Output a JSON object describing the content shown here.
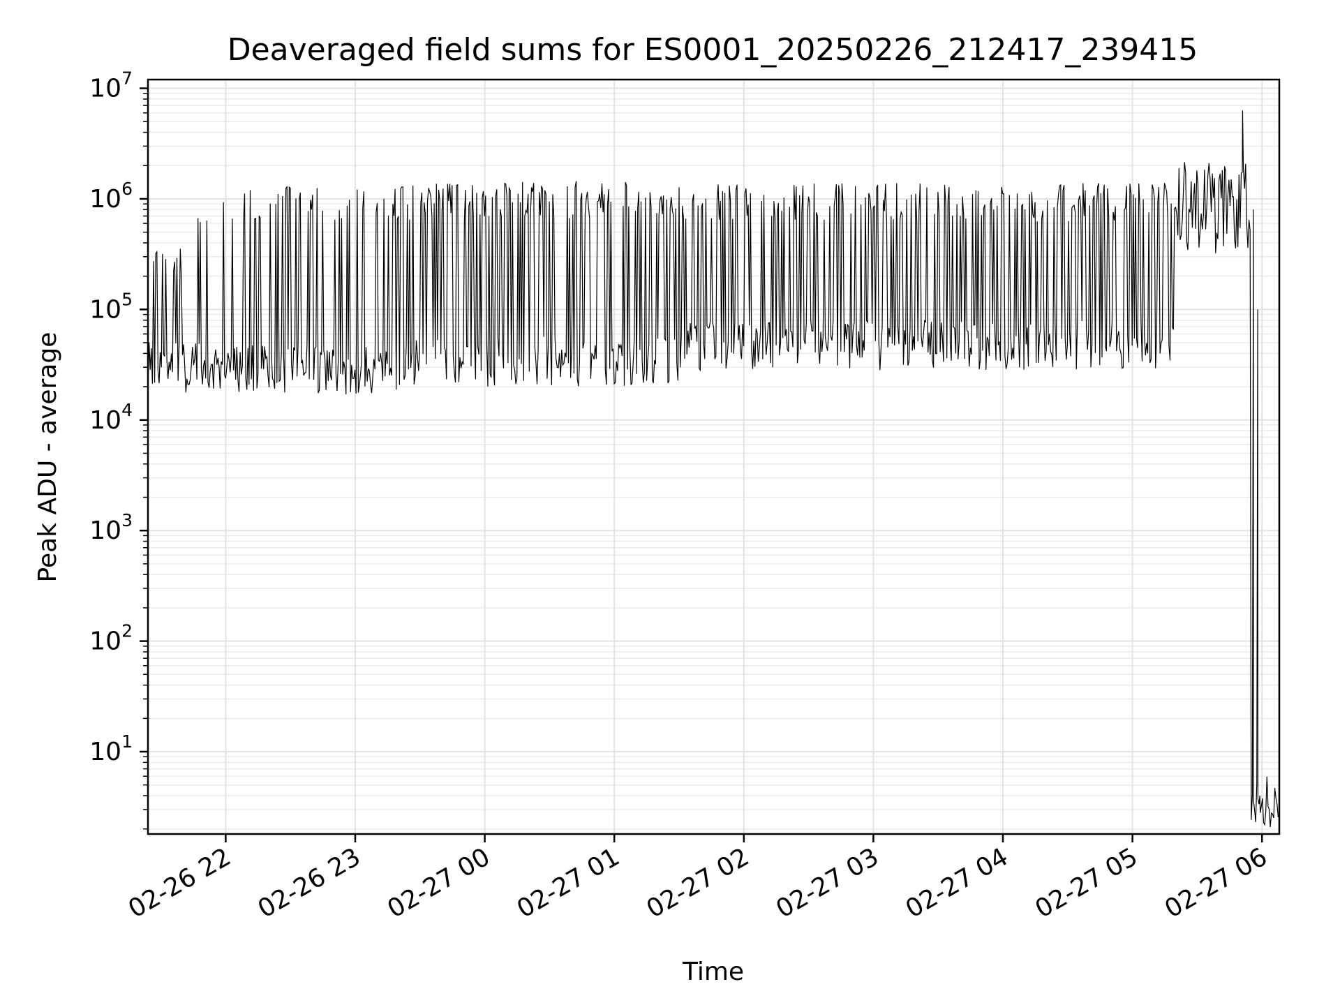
{
  "chart_data": {
    "type": "line",
    "title": "Deaveraged field sums for ES0001_20250226_212417_239415",
    "xlabel": "Time",
    "ylabel": "Peak ADU - average",
    "yscale": "log",
    "ylim": [
      1.8,
      12000000
    ],
    "xlim": [
      "02-26 21:24",
      "02-27 06:08"
    ],
    "grid": true,
    "x_ticks": [
      {
        "label": "02-26 22",
        "time": "02-26 22:00"
      },
      {
        "label": "02-26 23",
        "time": "02-26 23:00"
      },
      {
        "label": "02-27 00",
        "time": "02-27 00:00"
      },
      {
        "label": "02-27 01",
        "time": "02-27 01:00"
      },
      {
        "label": "02-27 02",
        "time": "02-27 02:00"
      },
      {
        "label": "02-27 03",
        "time": "02-27 03:00"
      },
      {
        "label": "02-27 04",
        "time": "02-27 04:00"
      },
      {
        "label": "02-27 05",
        "time": "02-27 05:00"
      },
      {
        "label": "02-27 06",
        "time": "02-27 06:00"
      }
    ],
    "y_ticks": [
      {
        "base": "10",
        "exp": "1",
        "value": 10
      },
      {
        "base": "10",
        "exp": "2",
        "value": 100
      },
      {
        "base": "10",
        "exp": "3",
        "value": 1000
      },
      {
        "base": "10",
        "exp": "4",
        "value": 10000
      },
      {
        "base": "10",
        "exp": "5",
        "value": 100000
      },
      {
        "base": "10",
        "exp": "6",
        "value": 1000000
      },
      {
        "base": "10",
        "exp": "7",
        "value": 10000000
      }
    ],
    "series": [
      {
        "color": "#000000",
        "segments": [
          {
            "start": "02-26 21:24",
            "end": "02-26 21:40",
            "baseline": 30000,
            "peak": 400000,
            "spike_freq": 0.4
          },
          {
            "start": "02-26 21:40",
            "end": "02-26 22:00",
            "baseline": 28000,
            "peak": 1300000,
            "spike_freq": 0.2
          },
          {
            "start": "02-26 22:00",
            "end": "02-26 23:20",
            "baseline": 27000,
            "peak": 1350000,
            "spike_freq": 0.5
          },
          {
            "start": "02-26 23:20",
            "end": "02-27 01:30",
            "baseline": 32000,
            "peak": 1450000,
            "spike_freq": 0.9
          },
          {
            "start": "02-27 01:30",
            "end": "02-27 05:20",
            "baseline": 45000,
            "peak": 1400000,
            "spike_freq": 0.8
          },
          {
            "start": "02-27 05:20",
            "end": "02-27 05:55",
            "baseline": 500000,
            "peak": 2200000,
            "spike_freq": 0.9
          },
          {
            "start": "02-27 05:55",
            "end": "02-27 06:08",
            "baseline": 4,
            "peak": 4.5,
            "spike_freq": 0.5
          }
        ],
        "notable_points": [
          {
            "x": "02-27 05:51",
            "y": 6300000
          },
          {
            "x": "02-27 05:56",
            "y": 800000
          },
          {
            "x": "02-27 05:58",
            "y": 100000
          },
          {
            "x": "02-27 05:59",
            "y": 4
          }
        ]
      }
    ]
  }
}
